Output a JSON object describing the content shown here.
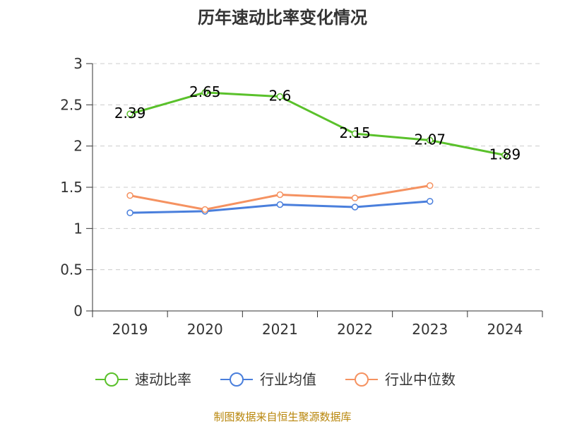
{
  "chart_data": {
    "type": "line",
    "title": "历年速动比率变化情况",
    "categories": [
      "2019",
      "2020",
      "2021",
      "2022",
      "2023",
      "2024"
    ],
    "ylim": [
      0,
      3
    ],
    "yticks": [
      0,
      0.5,
      1,
      1.5,
      2,
      2.5,
      3
    ],
    "ytick_labels": [
      "0",
      "0.5",
      "1",
      "1.5",
      "2",
      "2.5",
      "3"
    ],
    "grid": true,
    "legend_position": "bottom",
    "series": [
      {
        "name": "速动比率",
        "color": "#5ac12b",
        "values": [
          2.39,
          2.65,
          2.6,
          2.15,
          2.07,
          1.89
        ],
        "labels": [
          "2.39",
          "2.65",
          "2.6",
          "2.15",
          "2.07",
          "1.89"
        ],
        "show_labels": true
      },
      {
        "name": "行业均值",
        "color": "#4a7fdc",
        "values": [
          1.19,
          1.21,
          1.29,
          1.26,
          1.33,
          null
        ],
        "show_labels": false
      },
      {
        "name": "行业中位数",
        "color": "#f59261",
        "values": [
          1.4,
          1.23,
          1.41,
          1.37,
          1.52,
          null
        ],
        "show_labels": false
      }
    ],
    "source": "制图数据来自恒生聚源数据库"
  }
}
